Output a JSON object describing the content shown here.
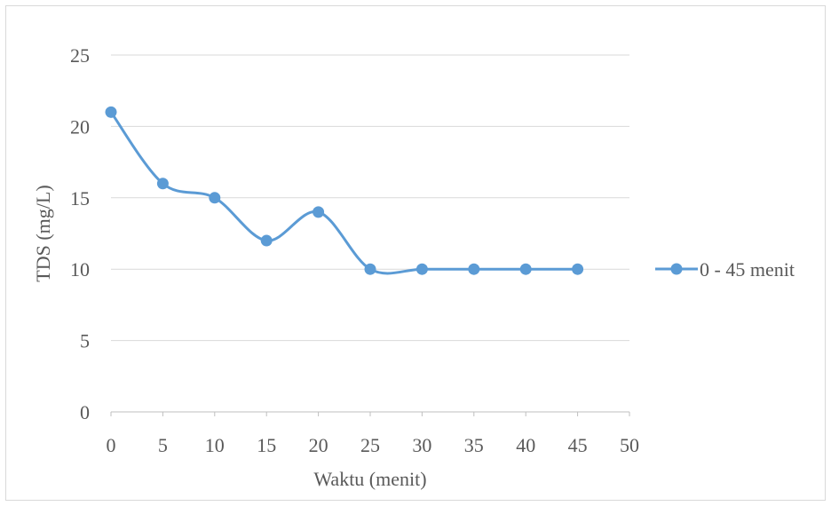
{
  "chart_data": {
    "type": "line",
    "title": "",
    "xlabel": "Waktu (menit)",
    "ylabel": "TDS (mg/L)",
    "xlim": [
      0,
      50
    ],
    "ylim": [
      0,
      25
    ],
    "x_ticks": [
      0,
      5,
      10,
      15,
      20,
      25,
      30,
      35,
      40,
      45,
      50
    ],
    "y_ticks": [
      0,
      5,
      10,
      15,
      20,
      25
    ],
    "grid": "horizontal",
    "legend_position": "right",
    "series": [
      {
        "name": "0 - 45 menit",
        "color": "#5b9bd5",
        "smooth": true,
        "marker": "circle",
        "points": [
          {
            "x": 0,
            "y": 21
          },
          {
            "x": 5,
            "y": 16
          },
          {
            "x": 10,
            "y": 15
          },
          {
            "x": 15,
            "y": 12
          },
          {
            "x": 20,
            "y": 14
          },
          {
            "x": 25,
            "y": 10
          },
          {
            "x": 30,
            "y": 10
          },
          {
            "x": 35,
            "y": 10
          },
          {
            "x": 40,
            "y": 10
          },
          {
            "x": 45,
            "y": 10
          }
        ]
      }
    ]
  }
}
